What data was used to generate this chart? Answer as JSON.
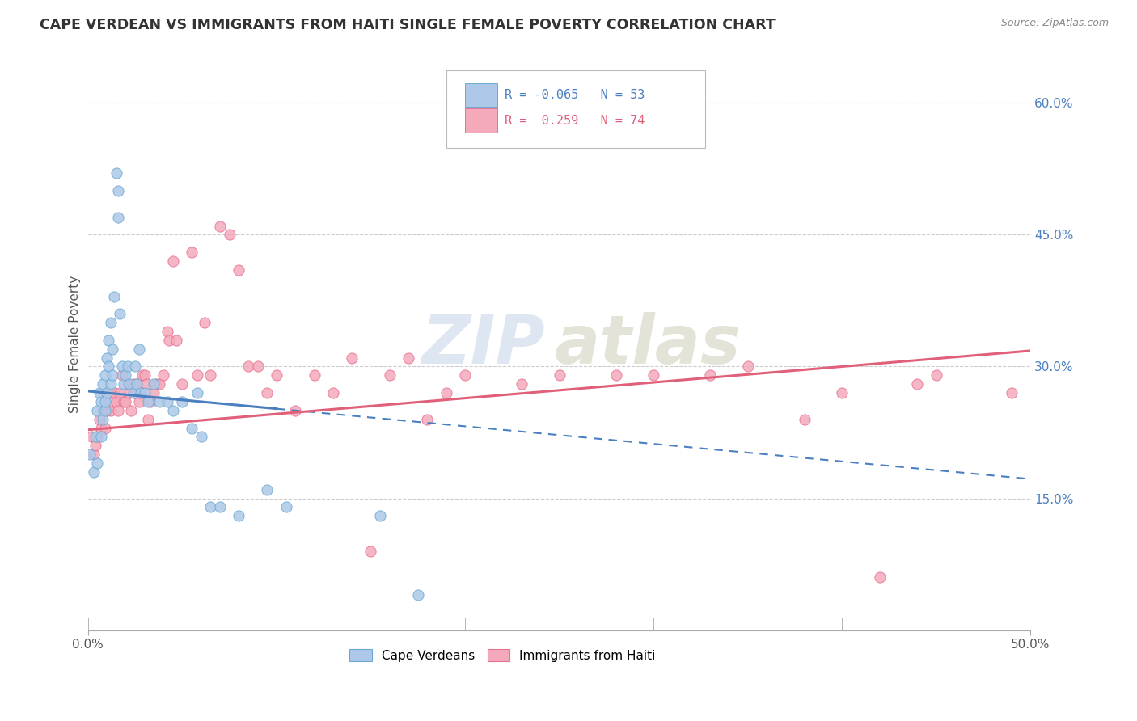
{
  "title": "CAPE VERDEAN VS IMMIGRANTS FROM HAITI SINGLE FEMALE POVERTY CORRELATION CHART",
  "source": "Source: ZipAtlas.com",
  "ylabel": "Single Female Poverty",
  "ytick_vals": [
    0.15,
    0.3,
    0.45,
    0.6
  ],
  "xlim": [
    0.0,
    0.5
  ],
  "ylim": [
    0.0,
    0.65
  ],
  "legend_blue_label": "Cape Verdeans",
  "legend_pink_label": "Immigrants from Haiti",
  "blue_color": "#adc8e8",
  "pink_color": "#f4aabb",
  "blue_edge_color": "#6aaad4",
  "pink_edge_color": "#e87090",
  "blue_line_color": "#4a7fc0",
  "pink_line_color": "#e0607a",
  "watermark_zip": "ZIP",
  "watermark_atlas": "atlas",
  "blue_R": -0.065,
  "blue_N": 53,
  "pink_R": 0.259,
  "pink_N": 74,
  "blue_line_start_x": 0.0,
  "blue_line_start_y": 0.272,
  "blue_line_solid_end_x": 0.1,
  "blue_line_solid_end_y": 0.252,
  "blue_line_end_x": 0.5,
  "blue_line_end_y": 0.172,
  "pink_line_start_x": 0.0,
  "pink_line_start_y": 0.228,
  "pink_line_end_x": 0.5,
  "pink_line_end_y": 0.318,
  "blue_scatter_x": [
    0.001,
    0.003,
    0.004,
    0.005,
    0.005,
    0.006,
    0.007,
    0.007,
    0.008,
    0.008,
    0.009,
    0.009,
    0.009,
    0.01,
    0.01,
    0.011,
    0.011,
    0.012,
    0.012,
    0.013,
    0.013,
    0.014,
    0.015,
    0.016,
    0.016,
    0.017,
    0.018,
    0.019,
    0.02,
    0.021,
    0.022,
    0.024,
    0.025,
    0.026,
    0.027,
    0.028,
    0.03,
    0.032,
    0.035,
    0.038,
    0.042,
    0.045,
    0.05,
    0.055,
    0.058,
    0.06,
    0.065,
    0.07,
    0.08,
    0.095,
    0.105,
    0.155,
    0.175
  ],
  "blue_scatter_y": [
    0.2,
    0.18,
    0.22,
    0.25,
    0.19,
    0.27,
    0.26,
    0.22,
    0.28,
    0.24,
    0.29,
    0.25,
    0.26,
    0.31,
    0.27,
    0.33,
    0.3,
    0.35,
    0.28,
    0.32,
    0.29,
    0.38,
    0.52,
    0.5,
    0.47,
    0.36,
    0.3,
    0.28,
    0.29,
    0.3,
    0.28,
    0.27,
    0.3,
    0.28,
    0.32,
    0.27,
    0.27,
    0.26,
    0.28,
    0.26,
    0.26,
    0.25,
    0.26,
    0.23,
    0.27,
    0.22,
    0.14,
    0.14,
    0.13,
    0.16,
    0.14,
    0.13,
    0.04
  ],
  "pink_scatter_x": [
    0.002,
    0.003,
    0.004,
    0.005,
    0.006,
    0.007,
    0.008,
    0.009,
    0.01,
    0.011,
    0.012,
    0.013,
    0.014,
    0.015,
    0.016,
    0.017,
    0.018,
    0.019,
    0.02,
    0.021,
    0.022,
    0.023,
    0.024,
    0.025,
    0.026,
    0.027,
    0.028,
    0.029,
    0.03,
    0.031,
    0.032,
    0.033,
    0.035,
    0.036,
    0.038,
    0.04,
    0.042,
    0.043,
    0.045,
    0.047,
    0.05,
    0.055,
    0.058,
    0.062,
    0.065,
    0.07,
    0.075,
    0.08,
    0.085,
    0.09,
    0.095,
    0.1,
    0.11,
    0.12,
    0.13,
    0.14,
    0.15,
    0.16,
    0.17,
    0.18,
    0.19,
    0.2,
    0.23,
    0.25,
    0.28,
    0.3,
    0.33,
    0.35,
    0.38,
    0.4,
    0.42,
    0.44,
    0.45,
    0.49
  ],
  "pink_scatter_y": [
    0.22,
    0.2,
    0.21,
    0.22,
    0.24,
    0.23,
    0.25,
    0.23,
    0.25,
    0.27,
    0.25,
    0.26,
    0.27,
    0.26,
    0.25,
    0.27,
    0.29,
    0.26,
    0.26,
    0.28,
    0.27,
    0.25,
    0.28,
    0.27,
    0.28,
    0.26,
    0.27,
    0.29,
    0.29,
    0.28,
    0.24,
    0.26,
    0.27,
    0.28,
    0.28,
    0.29,
    0.34,
    0.33,
    0.42,
    0.33,
    0.28,
    0.43,
    0.29,
    0.35,
    0.29,
    0.46,
    0.45,
    0.41,
    0.3,
    0.3,
    0.27,
    0.29,
    0.25,
    0.29,
    0.27,
    0.31,
    0.09,
    0.29,
    0.31,
    0.24,
    0.27,
    0.29,
    0.28,
    0.29,
    0.29,
    0.29,
    0.29,
    0.3,
    0.24,
    0.27,
    0.06,
    0.28,
    0.29,
    0.27
  ]
}
